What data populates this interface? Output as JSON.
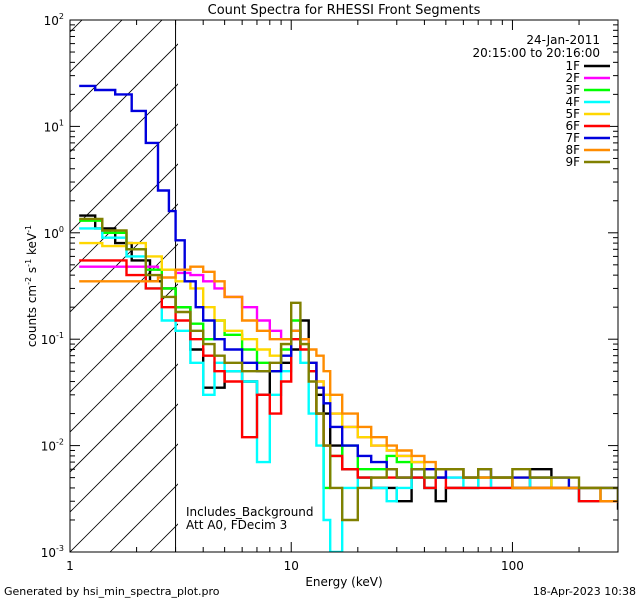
{
  "chart_data": {
    "type": "line",
    "title": "Count Spectra for RHESSI Front Segments",
    "xlabel": "Energy (keV)",
    "ylabel_parts": [
      "counts cm",
      "-2",
      " s",
      "-1",
      " keV",
      "-1"
    ],
    "x_scale": "log",
    "y_scale": "log",
    "xlim": [
      1,
      300
    ],
    "ylim": [
      0.001,
      100
    ],
    "x_ticks": [
      {
        "value": 1,
        "label": "1"
      },
      {
        "value": 10,
        "label": "10"
      },
      {
        "value": 100,
        "label": "100"
      }
    ],
    "y_ticks": [
      {
        "value": 0.001,
        "base": "10",
        "exp": "-3"
      },
      {
        "value": 0.01,
        "base": "10",
        "exp": "-2"
      },
      {
        "value": 0.1,
        "base": "10",
        "exp": "-1"
      },
      {
        "value": 1,
        "base": "10",
        "exp": "0"
      },
      {
        "value": 10,
        "base": "10",
        "exp": "1"
      },
      {
        "value": 100,
        "base": "10",
        "exp": "2"
      }
    ],
    "shaded_region": {
      "x_from": 1,
      "x_to": 3,
      "style": "diagonal-hatch"
    },
    "date_label": "24-Jan-2011",
    "time_label": "20:15:00 to 20:16:00",
    "annotations": [
      "Includes_Background",
      "Att A0, FDecim 3"
    ],
    "footer_left": "Generated by hsi_min_spectra_plot.pro",
    "footer_right": "18-Apr-2023 10:38",
    "series": [
      {
        "name": "1F",
        "color": "#000000",
        "x": [
          1.1,
          1.3,
          1.6,
          1.9,
          2.3,
          2.6,
          3.0,
          3.5,
          4.0,
          5,
          6,
          7,
          8,
          9,
          10,
          11,
          12,
          13,
          14,
          15,
          17,
          20,
          23,
          27,
          30,
          35,
          40,
          45,
          50,
          60,
          70,
          80,
          100,
          120,
          150,
          180,
          200,
          250,
          300
        ],
        "values": [
          1.45,
          1.1,
          0.8,
          0.55,
          0.35,
          0.3,
          0.2,
          0.08,
          0.035,
          0.05,
          0.04,
          0.03,
          0.05,
          0.06,
          0.08,
          0.15,
          0.06,
          0.03,
          0.02,
          0.01,
          0.006,
          0.005,
          0.004,
          0.004,
          0.003,
          0.005,
          0.004,
          0.003,
          0.004,
          0.004,
          0.005,
          0.005,
          0.004,
          0.006,
          0.004,
          0.004,
          0.003,
          0.003,
          0.0025
        ]
      },
      {
        "name": "2F",
        "color": "#ff00ff",
        "x": [
          1.1,
          1.5,
          2.0,
          2.5,
          3.0,
          3.5,
          4.0,
          4.5,
          5,
          6,
          7,
          8,
          9,
          10,
          11,
          12,
          13,
          14,
          15,
          17,
          20,
          23,
          27,
          30,
          35,
          40,
          45,
          50,
          60,
          70,
          80,
          100,
          120,
          150,
          180,
          200,
          250,
          300
        ],
        "values": [
          0.48,
          0.48,
          0.48,
          0.45,
          0.42,
          0.4,
          0.35,
          0.3,
          0.25,
          0.2,
          0.15,
          0.12,
          0.1,
          0.12,
          0.1,
          0.06,
          0.04,
          0.03,
          0.02,
          0.015,
          0.012,
          0.01,
          0.009,
          0.008,
          0.007,
          0.006,
          0.006,
          0.005,
          0.005,
          0.005,
          0.004,
          0.004,
          0.004,
          0.004,
          0.004,
          0.004,
          0.003,
          0.003
        ]
      },
      {
        "name": "3F",
        "color": "#00ff00",
        "x": [
          1.1,
          1.4,
          1.8,
          2.2,
          2.6,
          3.0,
          3.5,
          4.0,
          4.5,
          5,
          6,
          7,
          8,
          9,
          10,
          11,
          12,
          13,
          14,
          15,
          17,
          20,
          23,
          27,
          30,
          35,
          40,
          45,
          50,
          60,
          70,
          80,
          100,
          120,
          150,
          180,
          200,
          250,
          300
        ],
        "values": [
          1.3,
          1.0,
          0.7,
          0.45,
          0.3,
          0.2,
          0.14,
          0.1,
          0.15,
          0.11,
          0.08,
          0.06,
          0.05,
          0.08,
          0.15,
          0.1,
          0.05,
          0.02,
          0.004,
          0.008,
          0.01,
          0.006,
          0.006,
          0.008,
          0.007,
          0.006,
          0.005,
          0.006,
          0.006,
          0.005,
          0.005,
          0.005,
          0.004,
          0.004,
          0.004,
          0.004,
          0.004,
          0.003,
          0.003
        ]
      },
      {
        "name": "4F",
        "color": "#00ffff",
        "x": [
          1.1,
          1.4,
          1.8,
          2.2,
          2.6,
          3.0,
          3.5,
          4.0,
          4.5,
          5,
          6,
          7,
          8,
          9,
          10,
          11,
          12,
          13,
          14,
          15,
          17,
          20,
          23,
          27,
          30,
          35,
          40,
          45,
          50,
          60,
          70,
          80,
          100,
          120,
          150,
          180,
          200,
          250,
          300
        ],
        "values": [
          1.1,
          0.9,
          0.6,
          0.3,
          0.15,
          0.12,
          0.06,
          0.03,
          0.06,
          0.05,
          0.04,
          0.007,
          0.03,
          0.05,
          0.1,
          0.06,
          0.02,
          0.01,
          0.002,
          0.001,
          0.004,
          0.005,
          0.004,
          0.003,
          0.004,
          0.005,
          0.004,
          0.005,
          0.005,
          0.004,
          0.005,
          0.004,
          0.004,
          0.005,
          0.004,
          0.004,
          0.003,
          0.003,
          0.003
        ]
      },
      {
        "name": "5F",
        "color": "#ffd700",
        "x": [
          1.1,
          1.4,
          1.8,
          2.2,
          2.6,
          3.0,
          3.5,
          4.0,
          4.5,
          5,
          6,
          7,
          8,
          9,
          10,
          11,
          12,
          13,
          14,
          15,
          17,
          20,
          23,
          27,
          30,
          35,
          40,
          45,
          50,
          60,
          70,
          80,
          100,
          120,
          150,
          180,
          200,
          250,
          300
        ],
        "values": [
          0.8,
          0.75,
          0.8,
          0.6,
          0.45,
          0.35,
          0.3,
          0.2,
          0.15,
          0.12,
          0.1,
          0.08,
          0.07,
          0.09,
          0.1,
          0.09,
          0.06,
          0.04,
          0.03,
          0.02,
          0.015,
          0.012,
          0.01,
          0.009,
          0.008,
          0.007,
          0.006,
          0.006,
          0.006,
          0.005,
          0.005,
          0.005,
          0.005,
          0.005,
          0.004,
          0.004,
          0.004,
          0.004,
          0.003
        ]
      },
      {
        "name": "6F",
        "color": "#ff0000",
        "x": [
          1.1,
          1.4,
          1.8,
          2.2,
          2.6,
          3.0,
          3.5,
          4.0,
          4.5,
          5,
          6,
          7,
          8,
          9,
          10,
          11,
          12,
          13,
          14,
          15,
          17,
          20,
          23,
          27,
          30,
          35,
          40,
          45,
          50,
          60,
          70,
          80,
          100,
          120,
          150,
          180,
          200,
          250,
          300
        ],
        "values": [
          0.55,
          0.55,
          0.4,
          0.3,
          0.2,
          0.15,
          0.1,
          0.07,
          0.05,
          0.04,
          0.012,
          0.03,
          0.02,
          0.04,
          0.1,
          0.08,
          0.05,
          0.02,
          0.01,
          0.008,
          0.006,
          0.005,
          0.005,
          0.005,
          0.005,
          0.005,
          0.004,
          0.005,
          0.004,
          0.004,
          0.004,
          0.004,
          0.004,
          0.004,
          0.004,
          0.004,
          0.003,
          0.003,
          0.003
        ]
      },
      {
        "name": "7F",
        "color": "#0000dd",
        "x": [
          1.1,
          1.3,
          1.6,
          1.9,
          2.2,
          2.5,
          2.8,
          3.0,
          3.3,
          3.7,
          4.0,
          4.5,
          5,
          6,
          7,
          8,
          9,
          10,
          11,
          12,
          13,
          14,
          15,
          17,
          20,
          23,
          27,
          30,
          35,
          40,
          45,
          50,
          60,
          70,
          80,
          100,
          120,
          150,
          180,
          200,
          250,
          300
        ],
        "values": [
          24,
          22,
          20,
          14,
          7,
          2.5,
          1.6,
          0.85,
          0.35,
          0.2,
          0.15,
          0.1,
          0.08,
          0.06,
          0.05,
          0.05,
          0.07,
          0.12,
          0.1,
          0.06,
          0.035,
          0.025,
          0.015,
          0.01,
          0.008,
          0.007,
          0.006,
          0.005,
          0.006,
          0.006,
          0.005,
          0.006,
          0.005,
          0.006,
          0.005,
          0.005,
          0.005,
          0.005,
          0.004,
          0.004,
          0.004,
          0.003
        ]
      },
      {
        "name": "8F",
        "color": "#ff8c00",
        "x": [
          1.1,
          1.5,
          2.0,
          2.5,
          3.0,
          3.5,
          4.0,
          4.5,
          5,
          6,
          7,
          8,
          9,
          10,
          11,
          12,
          13,
          14,
          15,
          17,
          20,
          23,
          27,
          30,
          35,
          40,
          45,
          50,
          60,
          70,
          80,
          100,
          120,
          150,
          180,
          200,
          250,
          300
        ],
        "values": [
          0.35,
          0.35,
          0.35,
          0.38,
          0.45,
          0.48,
          0.43,
          0.35,
          0.25,
          0.15,
          0.12,
          0.1,
          0.1,
          0.12,
          0.1,
          0.08,
          0.07,
          0.05,
          0.03,
          0.02,
          0.015,
          0.012,
          0.01,
          0.009,
          0.008,
          0.007,
          0.006,
          0.006,
          0.005,
          0.005,
          0.005,
          0.004,
          0.004,
          0.004,
          0.004,
          0.004,
          0.003,
          0.003
        ]
      },
      {
        "name": "9F",
        "color": "#808000",
        "x": [
          1.1,
          1.4,
          1.8,
          2.2,
          2.6,
          3.0,
          3.5,
          4.0,
          4.5,
          5,
          6,
          7,
          8,
          9,
          10,
          11,
          12,
          13,
          14,
          15,
          17,
          20,
          23,
          27,
          30,
          35,
          40,
          45,
          50,
          60,
          70,
          80,
          100,
          120,
          150,
          180,
          200,
          250,
          300
        ],
        "values": [
          1.35,
          1.05,
          0.7,
          0.4,
          0.25,
          0.18,
          0.12,
          0.09,
          0.07,
          0.06,
          0.05,
          0.05,
          0.06,
          0.09,
          0.22,
          0.09,
          0.04,
          0.02,
          0.01,
          0.004,
          0.002,
          0.004,
          0.005,
          0.006,
          0.005,
          0.006,
          0.005,
          0.006,
          0.006,
          0.005,
          0.006,
          0.005,
          0.006,
          0.005,
          0.005,
          0.005,
          0.004,
          0.004,
          0.003
        ]
      }
    ]
  }
}
